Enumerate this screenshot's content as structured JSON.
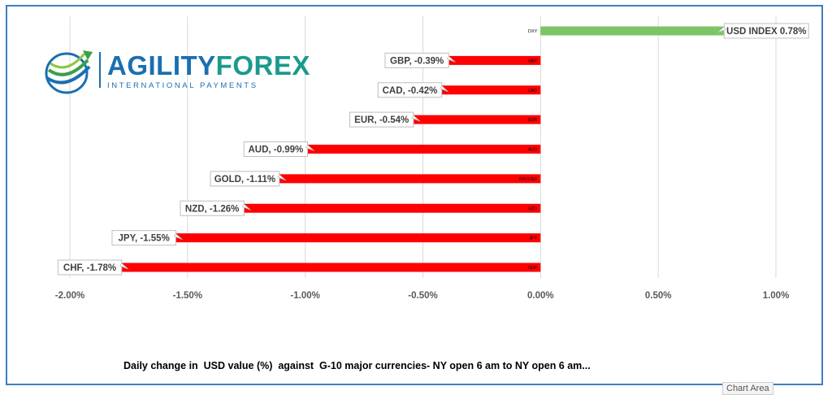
{
  "logo": {
    "name_part1": "AGILITY",
    "name_part2": "FOREX",
    "tagline": "INTERNATIONAL PAYMENTS",
    "color_name1": "#1a6fb0",
    "color_name2": "#1a9a8c"
  },
  "caption": "Daily change in  USD value (%)  against  G-10 major currencies- NY open 6 am to NY open 6 am...",
  "tooltip": "Chart Area",
  "chart_data": {
    "type": "bar",
    "orientation": "horizontal",
    "categories": [
      "DXY",
      "GBP",
      "CAD",
      "EUR",
      "AUD",
      "XAUUSD",
      "NZD",
      "JPY",
      "CHF"
    ],
    "values": [
      0.78,
      -0.39,
      -0.42,
      -0.54,
      -0.99,
      -1.11,
      -1.26,
      -1.55,
      -1.78
    ],
    "data_labels": [
      "USD INDEX 0.78%",
      "GBP, -0.39%",
      "CAD, -0.42%",
      "EUR, -0.54%",
      "AUD, -0.99%",
      "GOLD, -1.11%",
      "NZD, -1.26%",
      "JPY, -1.55%",
      "CHF, -1.78%"
    ],
    "xlim": [
      -2.0,
      1.0
    ],
    "xticks": [
      -2.0,
      -1.5,
      -1.0,
      -0.5,
      0.0,
      0.5,
      1.0
    ],
    "xtick_labels": [
      "-2.00%",
      "-1.50%",
      "-1.00%",
      "-0.50%",
      "0.00%",
      "0.50%",
      "1.00%"
    ],
    "grid": true,
    "colors": {
      "positive": "#7cc464",
      "negative": "#ff0000"
    }
  }
}
